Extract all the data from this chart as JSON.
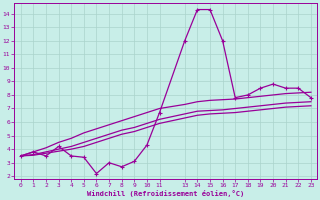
{
  "xlabel": "Windchill (Refroidissement éolien,°C)",
  "bg_color": "#c8eee8",
  "grid_color": "#aad4cc",
  "line_color": "#990099",
  "xlim": [
    -0.5,
    23.5
  ],
  "ylim": [
    1.8,
    14.8
  ],
  "x_ticks": [
    0,
    1,
    2,
    3,
    4,
    5,
    6,
    7,
    8,
    9,
    10,
    11,
    13,
    14,
    15,
    16,
    17,
    18,
    19,
    20,
    21,
    22,
    23
  ],
  "yticks": [
    2,
    3,
    4,
    5,
    6,
    7,
    8,
    9,
    10,
    11,
    12,
    13,
    14
  ],
  "line1_x": [
    0,
    1,
    2,
    3,
    4,
    5,
    6,
    7,
    8,
    9,
    10,
    11,
    13,
    14,
    15,
    16,
    17,
    18,
    19,
    20,
    21,
    22,
    23
  ],
  "line1_y": [
    3.5,
    3.8,
    3.5,
    4.2,
    3.5,
    3.4,
    2.2,
    3.0,
    2.7,
    3.1,
    4.3,
    6.7,
    12.0,
    14.3,
    14.3,
    12.0,
    7.8,
    8.0,
    8.5,
    8.8,
    8.5,
    8.5,
    7.8
  ],
  "line2_x": [
    0,
    1,
    2,
    3,
    4,
    5,
    6,
    7,
    8,
    9,
    10,
    11,
    13,
    14,
    15,
    16,
    17,
    18,
    19,
    20,
    21,
    22,
    23
  ],
  "line2_y": [
    3.5,
    3.8,
    4.1,
    4.5,
    4.8,
    5.2,
    5.5,
    5.8,
    6.1,
    6.4,
    6.7,
    7.0,
    7.3,
    7.5,
    7.6,
    7.65,
    7.7,
    7.8,
    7.9,
    8.0,
    8.1,
    8.15,
    8.2
  ],
  "line3_x": [
    0,
    1,
    2,
    3,
    4,
    5,
    6,
    7,
    8,
    9,
    10,
    11,
    13,
    14,
    15,
    16,
    17,
    18,
    19,
    20,
    21,
    22,
    23
  ],
  "line3_y": [
    3.5,
    3.6,
    3.8,
    4.0,
    4.2,
    4.5,
    4.8,
    5.1,
    5.4,
    5.6,
    5.9,
    6.2,
    6.6,
    6.8,
    6.85,
    6.9,
    7.0,
    7.1,
    7.2,
    7.3,
    7.4,
    7.45,
    7.5
  ],
  "line4_x": [
    0,
    1,
    2,
    3,
    4,
    5,
    6,
    7,
    8,
    9,
    10,
    11,
    13,
    14,
    15,
    16,
    17,
    18,
    19,
    20,
    21,
    22,
    23
  ],
  "line4_y": [
    3.5,
    3.55,
    3.7,
    3.85,
    4.0,
    4.2,
    4.5,
    4.8,
    5.1,
    5.3,
    5.6,
    5.9,
    6.3,
    6.5,
    6.6,
    6.65,
    6.7,
    6.8,
    6.9,
    7.0,
    7.1,
    7.15,
    7.2
  ]
}
